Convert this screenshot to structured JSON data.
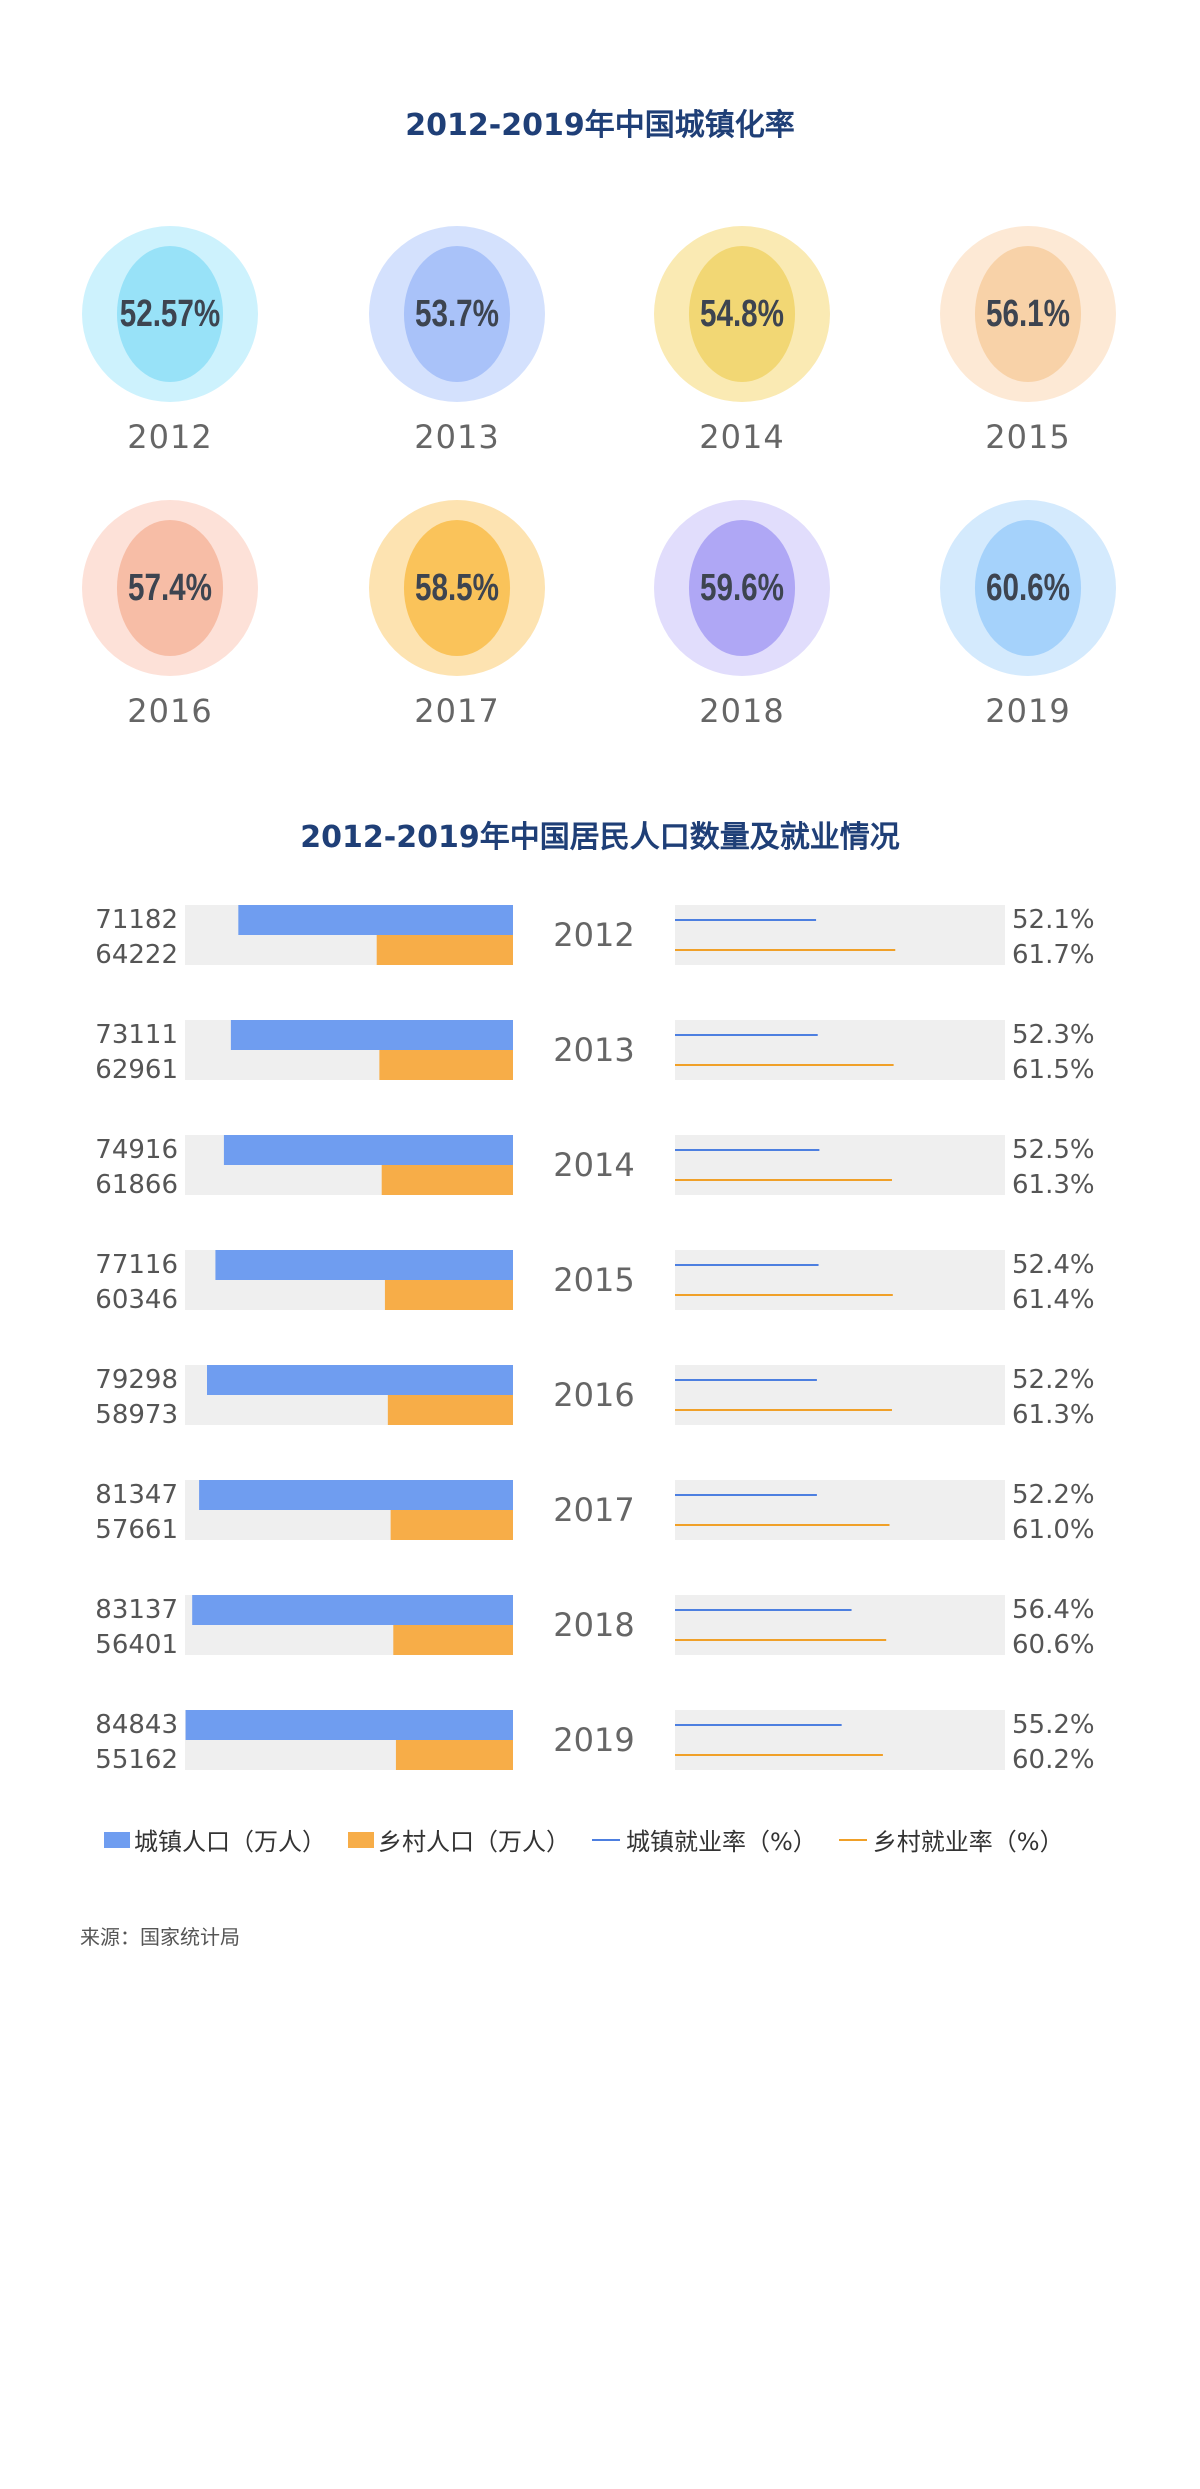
{
  "rates_title": "2012-2019年中国城镇化率",
  "pop_title": "2012-2019年中国居民人口数量及就业情况",
  "source": "来源：国家统计局",
  "colors": {
    "urban": "#6f9df0",
    "rural": "#f7ad48",
    "urban_line": "#4d7fe0",
    "rural_line": "#f0a028",
    "track": "#efefef"
  },
  "circles": [
    {
      "year": "2012",
      "label": "52.57%",
      "outer": "#cdf2fd",
      "inner": "#98e2f8"
    },
    {
      "year": "2013",
      "label": "53.7%",
      "outer": "#d4e1fd",
      "inner": "#a9c2f9"
    },
    {
      "year": "2014",
      "label": "54.8%",
      "outer": "#faeab3",
      "inner": "#f2d774"
    },
    {
      "year": "2015",
      "label": "56.1%",
      "outer": "#fde9d5",
      "inner": "#f8d2a8"
    },
    {
      "year": "2016",
      "label": "57.4%",
      "outer": "#fde1d8",
      "inner": "#f7bda6"
    },
    {
      "year": "2017",
      "label": "58.5%",
      "outer": "#fde3b1",
      "inner": "#fac35a"
    },
    {
      "year": "2018",
      "label": "59.6%",
      "outer": "#e1ddfc",
      "inner": "#afa7f5"
    },
    {
      "year": "2019",
      "label": "60.6%",
      "outer": "#d4eafd",
      "inner": "#a5d2fb"
    }
  ],
  "chart_data": {
    "type": "bar",
    "title": "2012-2019年中国居民人口数量及就业情况",
    "categories": [
      "2012",
      "2013",
      "2014",
      "2015",
      "2016",
      "2017",
      "2018",
      "2019"
    ],
    "series": [
      {
        "name": "城镇人口（万人）",
        "values": [
          71182,
          73111,
          74916,
          77116,
          79298,
          81347,
          83137,
          84843
        ]
      },
      {
        "name": "乡村人口（万人）",
        "values": [
          64222,
          62961,
          61866,
          60346,
          58973,
          57661,
          56401,
          55162
        ]
      },
      {
        "name": "城镇就业率（%）",
        "values": [
          52.1,
          52.3,
          52.5,
          52.4,
          52.2,
          52.2,
          56.4,
          55.2
        ]
      },
      {
        "name": "乡村就业率（%）",
        "values": [
          61.7,
          61.5,
          61.3,
          61.4,
          61.3,
          61.0,
          60.6,
          60.2
        ]
      }
    ],
    "urban_pop_labels": [
      "71182",
      "73111",
      "74916",
      "77116",
      "79298",
      "81347",
      "83137",
      "84843"
    ],
    "rural_pop_labels": [
      "64222",
      "62961",
      "61866",
      "60346",
      "58973",
      "57661",
      "56401",
      "55162"
    ],
    "urban_rate_labels": [
      "52.1%",
      "52.3%",
      "52.5%",
      "52.4%",
      "52.2%",
      "52.2%",
      "56.4%",
      "55.2%"
    ],
    "rural_rate_labels": [
      "61.7%",
      "61.5%",
      "61.3%",
      "61.4%",
      "61.3%",
      "61.0%",
      "60.6%",
      "60.2%"
    ]
  },
  "legend": [
    {
      "label": "城镇人口（万人）",
      "kind": "bar",
      "color": "#6f9df0"
    },
    {
      "label": "乡村人口（万人）",
      "kind": "bar",
      "color": "#f7ad48"
    },
    {
      "label": "城镇就业率（%）",
      "kind": "line",
      "color": "#4d7fe0"
    },
    {
      "label": "乡村就业率（%）",
      "kind": "line",
      "color": "#f0a028"
    }
  ]
}
